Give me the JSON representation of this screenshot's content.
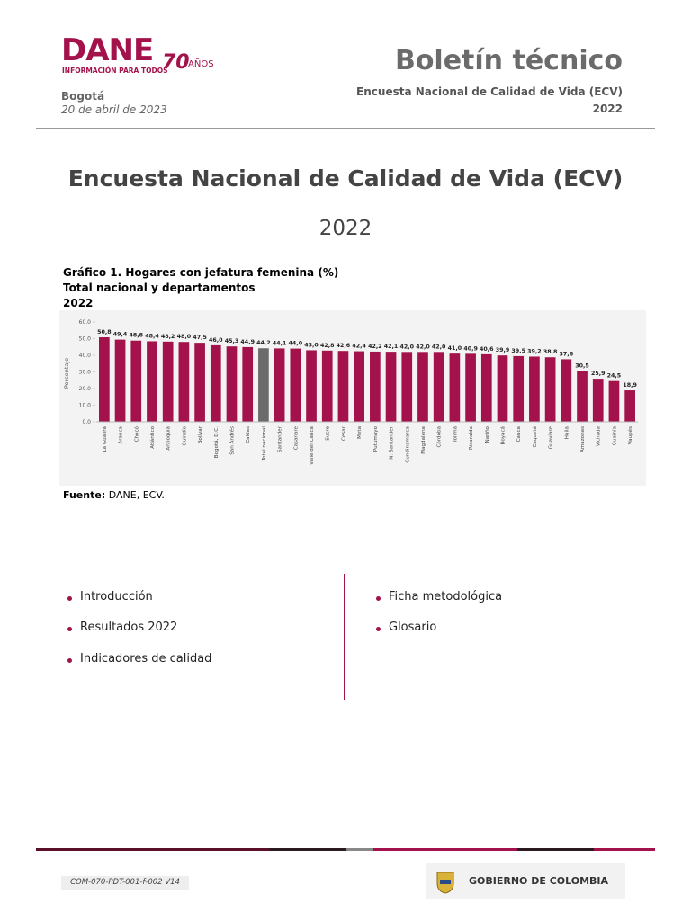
{
  "header": {
    "logo": "DANE",
    "logo_tagline": "INFORMACIÓN PARA TODOS",
    "anniversary_number": "70",
    "anniversary_word": "AÑOS",
    "title": "Boletín técnico",
    "city": "Bogotá",
    "date": "20 de abril de 2023",
    "survey": "Encuesta Nacional de Calidad de Vida (ECV)",
    "year": "2022"
  },
  "document": {
    "title": "Encuesta Nacional de Calidad de Vida (ECV)",
    "year": "2022"
  },
  "chart_data": {
    "type": "bar",
    "title": "Gráfico 1. Hogares con jefatura femenina (%)",
    "subtitle": "Total nacional y departamentos",
    "period": "2022",
    "y_label": "Porcentaje",
    "categories": [
      "La Guajira",
      "Arauca",
      "Chocó",
      "Atlántico",
      "Antioquia",
      "Quindío",
      "Bolívar",
      "Bogotá, D.C.",
      "San Andrés",
      "Caldas",
      "Total nacional",
      "Santander",
      "Casanare",
      "Valle del Cauca",
      "Sucre",
      "Cesar",
      "Meta",
      "Putumayo",
      "N. Santander",
      "Cundinamarca",
      "Magdalena",
      "Córdoba",
      "Tolima",
      "Risaralda",
      "Nariño",
      "Boyacá",
      "Cauca",
      "Caquetá",
      "Guaviare",
      "Huila",
      "Amazonas",
      "Vichada",
      "Guainía",
      "Vaupés"
    ],
    "values": [
      50.8,
      49.4,
      48.8,
      48.4,
      48.2,
      48.0,
      47.5,
      46.0,
      45.3,
      44.9,
      44.2,
      44.1,
      44.0,
      43.0,
      42.8,
      42.6,
      42.4,
      42.2,
      42.1,
      42.0,
      42.0,
      42.0,
      41.0,
      40.9,
      40.6,
      39.9,
      39.5,
      39.2,
      38.8,
      37.6,
      30.5,
      25.9,
      24.5,
      18.9
    ],
    "value_labels": [
      "50,8",
      "49,4",
      "48,8",
      "48,4",
      "48,2",
      "48,0",
      "47,5",
      "46,0",
      "45,3",
      "44,9",
      "44,2",
      "44,1",
      "44,0",
      "43,0",
      "42,8",
      "42,6",
      "42,4",
      "42,2",
      "42,1",
      "42,0",
      "42,0",
      "42,0",
      "41,0",
      "40,9",
      "40,6",
      "39,9",
      "39,5",
      "39,2",
      "38,8",
      "37,6",
      "30,5",
      "25,9",
      "24,5",
      "18,9"
    ],
    "colors": [
      "#a3124b",
      "#a3124b",
      "#a3124b",
      "#a3124b",
      "#a3124b",
      "#a3124b",
      "#a3124b",
      "#a3124b",
      "#a3124b",
      "#a3124b",
      "#6b6b6b",
      "#a3124b",
      "#a3124b",
      "#a3124b",
      "#a3124b",
      "#a3124b",
      "#a3124b",
      "#a3124b",
      "#a3124b",
      "#a3124b",
      "#a3124b",
      "#a3124b",
      "#a3124b",
      "#a3124b",
      "#a3124b",
      "#a3124b",
      "#a3124b",
      "#a3124b",
      "#a3124b",
      "#a3124b",
      "#a3124b",
      "#a3124b",
      "#a3124b",
      "#a3124b"
    ],
    "ylim": [
      0,
      60
    ],
    "yticks": [
      {
        "value": 0,
        "label": "0.0"
      },
      {
        "value": 10,
        "label": "10.0"
      },
      {
        "value": 20,
        "label": "20.0"
      },
      {
        "value": 30,
        "label": "30.0"
      },
      {
        "value": 40,
        "label": "40.0"
      },
      {
        "value": 50,
        "label": "50.0"
      },
      {
        "value": 60,
        "label": "60.0"
      }
    ],
    "grid": false,
    "source_label": "Fuente:",
    "source": "DANE, ECV."
  },
  "sections": {
    "left": [
      "Introducción",
      "Resultados 2022",
      "Indicadores de calidad"
    ],
    "right": [
      "Ficha metodológica",
      "Glosario"
    ]
  },
  "footer": {
    "code": "COM-070-PDT-001-f-002 V14",
    "government": "GOBIERNO DE COLOMBIA"
  }
}
